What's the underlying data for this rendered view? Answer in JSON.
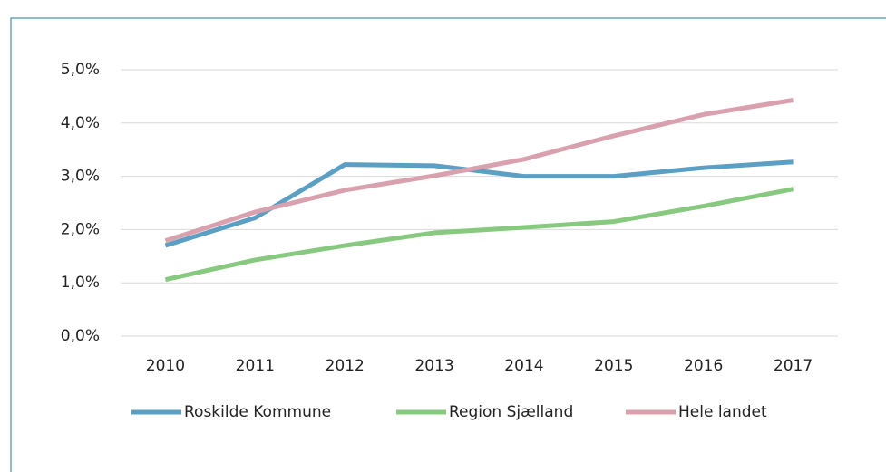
{
  "chart_data": {
    "type": "line",
    "categories": [
      "2010",
      "2011",
      "2012",
      "2013",
      "2014",
      "2015",
      "2016",
      "2017"
    ],
    "series": [
      {
        "name": "Roskilde Kommune",
        "color": "#5b9fc4",
        "values": [
          1.7,
          2.22,
          3.22,
          3.2,
          3.0,
          3.0,
          3.16,
          3.27
        ]
      },
      {
        "name": "Region Sjælland",
        "color": "#86c97f",
        "values": [
          1.06,
          1.43,
          1.7,
          1.94,
          2.04,
          2.15,
          2.44,
          2.76
        ]
      },
      {
        "name": "Hele landet",
        "color": "#d9a0ad",
        "values": [
          1.79,
          2.33,
          2.74,
          3.01,
          3.32,
          3.76,
          4.16,
          4.43
        ]
      }
    ],
    "ylim": [
      0,
      5
    ],
    "yticks": [
      {
        "value": 0,
        "label": "0,0%"
      },
      {
        "value": 1,
        "label": "1,0%"
      },
      {
        "value": 2,
        "label": "2,0%"
      },
      {
        "value": 3,
        "label": "3,0%"
      },
      {
        "value": 4,
        "label": "4,0%"
      },
      {
        "value": 5,
        "label": "5,0%"
      }
    ],
    "grid": true,
    "legend": "bottom"
  }
}
